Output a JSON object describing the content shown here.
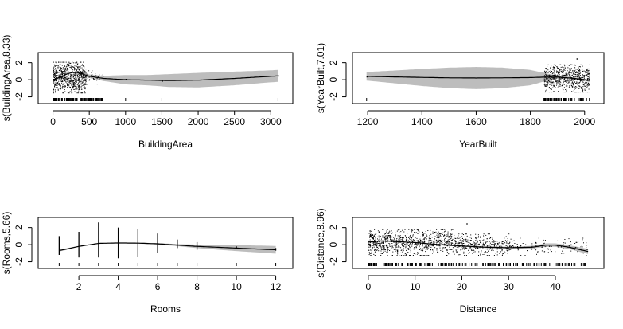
{
  "chart_data": [
    {
      "type": "line",
      "xlabel": "BuildingArea",
      "ylabel": "s(BuildingArea,8.33)",
      "xticks": [
        0,
        500,
        1000,
        1500,
        2000,
        2500,
        3000
      ],
      "yticks": [
        -2,
        0,
        2
      ],
      "xlim": [
        -50,
        3150
      ],
      "ylim": [
        -2.6,
        2.9
      ],
      "series": [
        {
          "x": [
            0,
            100,
            200,
            300,
            400,
            500,
            700,
            1000,
            1300,
            1600,
            2000,
            2500,
            3000,
            3100
          ],
          "values": [
            0.0,
            0.3,
            0.7,
            0.9,
            0.7,
            0.4,
            0.15,
            0.0,
            -0.05,
            -0.1,
            -0.05,
            0.15,
            0.4,
            0.45
          ]
        }
      ],
      "band_halfwidth": [
        0.05,
        0.05,
        0.05,
        0.08,
        0.12,
        0.2,
        0.3,
        0.55,
        0.6,
        0.75,
        0.85,
        0.8,
        0.7,
        0.7
      ],
      "residual_groups": [
        {
          "x": [
            0,
            450
          ],
          "y": [
            -1.5,
            2.1
          ],
          "n": 700
        },
        {
          "x": [
            450,
            700
          ],
          "y": [
            -0.6,
            1.1
          ],
          "n": 40
        }
      ],
      "residual_points": [
        [
          1000,
          0.1
        ],
        [
          1500,
          -0.1
        ],
        [
          3100,
          0.5
        ]
      ],
      "rug": {
        "ranges": [
          [
            0,
            700
          ]
        ],
        "n": 90,
        "extra": [
          1000,
          1500,
          3100
        ]
      }
    },
    {
      "type": "line",
      "xlabel": "YearBuilt",
      "ylabel": "s(YearBuilt,7.01)",
      "xticks": [
        1200,
        1400,
        1600,
        1800,
        2000
      ],
      "yticks": [
        -2,
        0,
        2
      ],
      "xlim": [
        1185,
        2030
      ],
      "ylim": [
        -2.6,
        2.9
      ],
      "series": [
        {
          "x": [
            1196,
            1300,
            1400,
            1500,
            1600,
            1700,
            1800,
            1850,
            1900,
            1950,
            2000,
            2018
          ],
          "values": [
            0.4,
            0.33,
            0.27,
            0.22,
            0.2,
            0.22,
            0.25,
            0.3,
            0.3,
            0.2,
            0.0,
            -0.1
          ]
        }
      ],
      "band_halfwidth": [
        0.5,
        0.75,
        1.0,
        1.2,
        1.3,
        1.2,
        0.9,
        0.5,
        0.2,
        0.12,
        0.12,
        0.2
      ],
      "residual_groups": [
        {
          "x": [
            1850,
            2018
          ],
          "y": [
            -1.4,
            1.8
          ],
          "n": 650
        }
      ],
      "residual_points": [
        [
          1196,
          0.4
        ],
        [
          1970,
          2.5
        ]
      ],
      "rug": {
        "ranges": [
          [
            1850,
            2018
          ]
        ],
        "n": 60,
        "extra": [
          1196
        ]
      }
    },
    {
      "type": "line",
      "xlabel": "Rooms",
      "ylabel": "s(Rooms,5.66)",
      "xticks": [
        2,
        4,
        6,
        8,
        10,
        12
      ],
      "yticks": [
        -2,
        0,
        2
      ],
      "xlim": [
        0.5,
        12.3
      ],
      "ylim": [
        -2.6,
        2.9
      ],
      "series": [
        {
          "x": [
            1,
            2,
            3,
            4,
            5,
            6,
            7,
            8,
            9,
            10,
            11,
            12
          ],
          "values": [
            -0.7,
            -0.2,
            0.15,
            0.2,
            0.18,
            0.1,
            -0.05,
            -0.2,
            -0.3,
            -0.4,
            -0.5,
            -0.6
          ]
        }
      ],
      "band_halfwidth": [
        0.12,
        0.05,
        0.04,
        0.04,
        0.05,
        0.08,
        0.12,
        0.2,
        0.28,
        0.35,
        0.4,
        0.45
      ],
      "rooms_strips": [
        {
          "x": 1,
          "lo": -1.2,
          "hi": 1.0
        },
        {
          "x": 2,
          "lo": -1.5,
          "hi": 1.5
        },
        {
          "x": 3,
          "lo": -1.5,
          "hi": 2.6
        },
        {
          "x": 4,
          "lo": -1.6,
          "hi": 2.0
        },
        {
          "x": 5,
          "lo": -1.4,
          "hi": 1.8
        },
        {
          "x": 6,
          "lo": -1.0,
          "hi": 1.3
        },
        {
          "x": 7,
          "lo": -0.4,
          "hi": 0.6
        },
        {
          "x": 8,
          "lo": -0.6,
          "hi": 0.3
        },
        {
          "x": 10,
          "lo": -0.5,
          "hi": -0.2
        },
        {
          "x": 12,
          "lo": -0.7,
          "hi": -0.4
        }
      ],
      "rug": {
        "ranges": [],
        "n": 0,
        "extra": [
          1,
          2,
          3,
          4,
          5,
          6,
          7,
          8,
          10,
          12
        ]
      }
    },
    {
      "type": "line",
      "xlabel": "Distance",
      "ylabel": "s(Distance,8.96)",
      "xticks": [
        0,
        10,
        20,
        30,
        40
      ],
      "yticks": [
        -2,
        0,
        2
      ],
      "xlim": [
        -1,
        48
      ],
      "ylim": [
        -2.6,
        2.9
      ],
      "series": [
        {
          "x": [
            0,
            3,
            6,
            10,
            15,
            20,
            25,
            30,
            35,
            38,
            40,
            43,
            47
          ],
          "values": [
            0.3,
            0.45,
            0.35,
            0.25,
            0.0,
            -0.15,
            -0.3,
            -0.35,
            -0.3,
            -0.05,
            -0.05,
            -0.3,
            -0.8
          ]
        }
      ],
      "band_halfwidth": [
        0.1,
        0.06,
        0.05,
        0.05,
        0.06,
        0.08,
        0.1,
        0.12,
        0.15,
        0.2,
        0.2,
        0.22,
        0.3
      ],
      "residual_groups": [
        {
          "x": [
            0,
            18
          ],
          "y": [
            -1.2,
            1.8
          ],
          "n": 900
        },
        {
          "x": [
            18,
            30
          ],
          "y": [
            -1.2,
            1.3
          ],
          "n": 350
        },
        {
          "x": [
            30,
            47
          ],
          "y": [
            -1.2,
            0.8
          ],
          "n": 120
        }
      ],
      "residual_points": [
        [
          21,
          2.5
        ]
      ],
      "rug": {
        "ranges": [
          [
            0,
            47
          ]
        ],
        "n": 160,
        "extra": []
      }
    }
  ]
}
